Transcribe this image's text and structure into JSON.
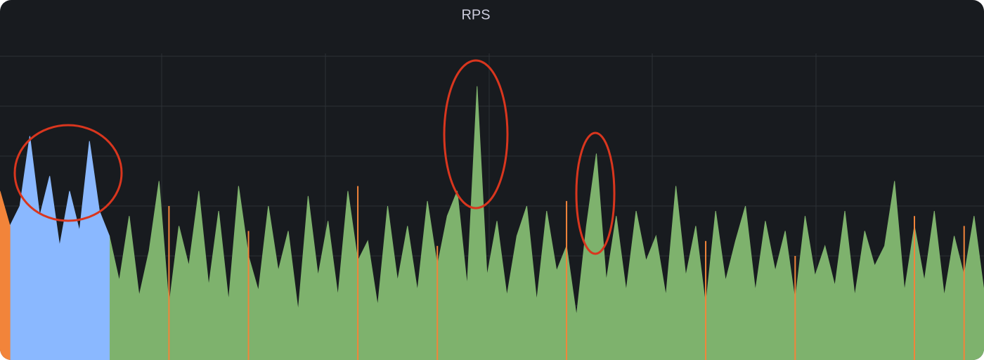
{
  "chart_data": {
    "type": "area",
    "title": "RPS",
    "ylim": [
      0,
      6
    ],
    "yticks": [
      1,
      2,
      3,
      4,
      5,
      6
    ],
    "grid": true,
    "categories": [
      null,
      null,
      null,
      null,
      null,
      null,
      null,
      null,
      null,
      null,
      null,
      null,
      null,
      null,
      null,
      null,
      null,
      null,
      null,
      null,
      null,
      null,
      null,
      null,
      null,
      null,
      null,
      null,
      null,
      null,
      null,
      null,
      null,
      null,
      null,
      null,
      null,
      null,
      null,
      null,
      null,
      null,
      null,
      null,
      null,
      null,
      null,
      null,
      null,
      null,
      null,
      null,
      null,
      null,
      null,
      null,
      null,
      null,
      null,
      null,
      null,
      null,
      null,
      null,
      null,
      null,
      null,
      null,
      null,
      null,
      null,
      null,
      null,
      null,
      null,
      null,
      null,
      null,
      null,
      null,
      null,
      null,
      null,
      null,
      null,
      null,
      null,
      null,
      null,
      null,
      null,
      null,
      null,
      null,
      null,
      null,
      null,
      null,
      null,
      null
    ],
    "series": [
      {
        "color": "#7eb26d",
        "values": [
          null,
          null,
          null,
          null,
          null,
          null,
          null,
          null,
          null,
          null,
          null,
          2.4,
          1.5,
          2.8,
          1.2,
          2.1,
          3.5,
          1.0,
          2.6,
          1.8,
          3.3,
          1.4,
          2.9,
          1.1,
          3.4,
          2.0,
          1.3,
          3.0,
          1.7,
          2.5,
          0.9,
          3.2,
          1.6,
          2.7,
          1.2,
          3.3,
          1.9,
          2.3,
          1.0,
          3.0,
          1.5,
          2.6,
          1.3,
          3.1,
          1.8,
          2.8,
          3.3,
          1.4,
          5.4,
          1.6,
          2.7,
          1.2,
          2.4,
          3.0,
          1.1,
          2.9,
          1.7,
          2.2,
          0.8,
          2.6,
          4.05,
          1.5,
          2.8,
          1.3,
          2.9,
          1.9,
          2.4,
          1.2,
          3.4,
          1.6,
          2.6,
          1.0,
          2.9,
          1.5,
          2.3,
          3.0,
          1.3,
          2.7,
          1.7,
          2.5,
          1.1,
          2.8,
          1.6,
          2.2,
          1.4,
          2.9,
          1.2,
          2.5,
          1.8,
          2.2,
          3.5,
          1.3,
          2.6,
          1.5,
          2.9,
          1.2,
          2.4,
          1.6,
          2.8,
          1.3
        ]
      },
      {
        "color": "#8ab8ff",
        "values": [
          null,
          2.6,
          3.0,
          4.4,
          2.8,
          3.6,
          2.2,
          3.3,
          2.5,
          4.3,
          2.9,
          2.4,
          null,
          null,
          null,
          null,
          null,
          null,
          null,
          null,
          null,
          null,
          null,
          null,
          null,
          null,
          null,
          null,
          null,
          null,
          null,
          null,
          null,
          null,
          null,
          null,
          null,
          null,
          null,
          null,
          null,
          null,
          null,
          null,
          null,
          null,
          null,
          null,
          null,
          null,
          null,
          null,
          null,
          null,
          null,
          null,
          null,
          null,
          null,
          null,
          null,
          null,
          null,
          null,
          null,
          null,
          null,
          null,
          null,
          null,
          null,
          null,
          null,
          null,
          null,
          null,
          null,
          null,
          null,
          null,
          null,
          null,
          null,
          null,
          null,
          null,
          null,
          null,
          null,
          null,
          null,
          null,
          null,
          null,
          null,
          null,
          null,
          null,
          null,
          null
        ]
      },
      {
        "color": "#f2843a",
        "values": [
          3.3,
          2.6,
          null,
          null,
          null,
          null,
          null,
          null,
          null,
          null,
          null,
          null,
          null,
          null,
          null,
          null,
          null,
          3.0,
          null,
          null,
          null,
          null,
          null,
          null,
          null,
          2.5,
          null,
          null,
          null,
          null,
          null,
          null,
          null,
          null,
          null,
          null,
          3.4,
          null,
          null,
          null,
          null,
          null,
          null,
          null,
          2.2,
          null,
          null,
          null,
          null,
          null,
          null,
          null,
          null,
          null,
          null,
          null,
          null,
          3.1,
          null,
          null,
          null,
          null,
          null,
          null,
          null,
          null,
          null,
          null,
          null,
          null,
          null,
          2.3,
          null,
          null,
          null,
          null,
          null,
          null,
          null,
          null,
          2.0,
          null,
          null,
          null,
          null,
          null,
          null,
          null,
          null,
          null,
          null,
          null,
          2.8,
          null,
          null,
          null,
          null,
          2.6,
          null,
          null
        ]
      }
    ]
  }
}
